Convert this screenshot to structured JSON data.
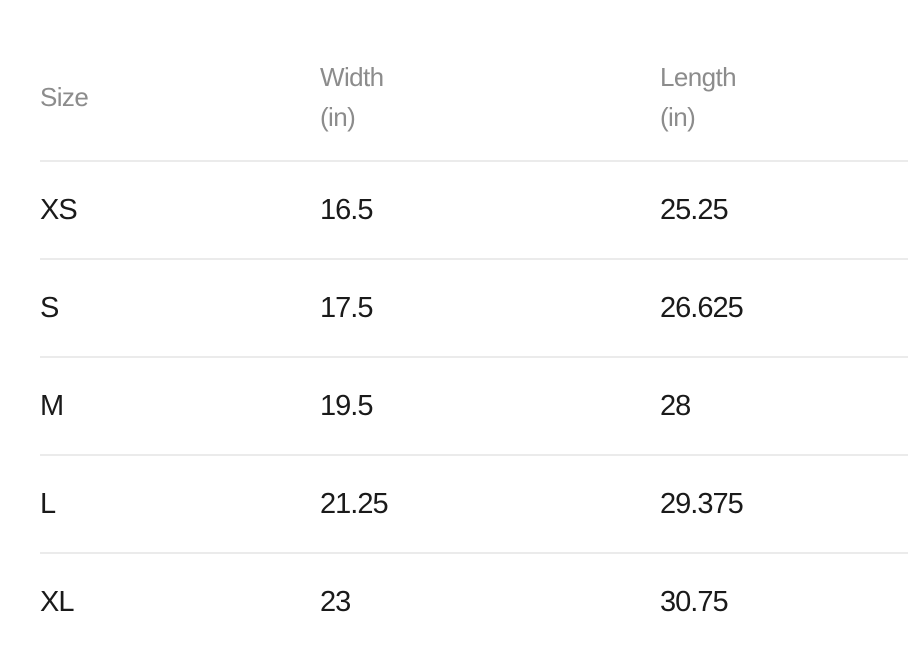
{
  "table": {
    "headers": [
      {
        "line1": "Size",
        "line2": ""
      },
      {
        "line1": "Width",
        "line2": "(in)"
      },
      {
        "line1": "Length",
        "line2": "(in)"
      }
    ],
    "rows": [
      [
        "XS",
        "16.5",
        "25.25"
      ],
      [
        "S",
        "17.5",
        "26.625"
      ],
      [
        "M",
        "19.5",
        "28"
      ],
      [
        "L",
        "21.25",
        "29.375"
      ],
      [
        "XL",
        "23",
        "30.75"
      ]
    ]
  }
}
